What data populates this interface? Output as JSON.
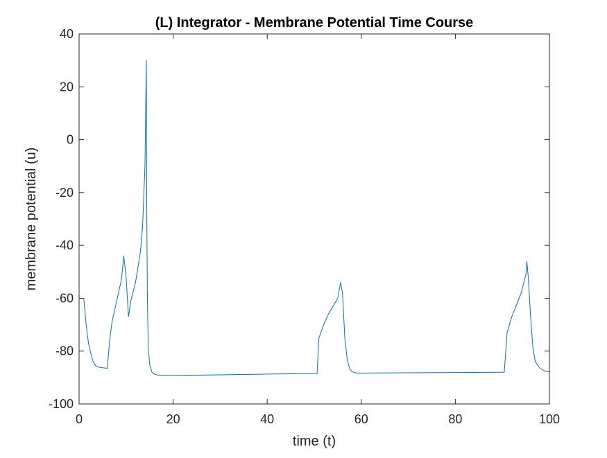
{
  "chart_data": {
    "type": "line",
    "title": "(L) Integrator - Membrane Potential Time Course",
    "xlabel": "time (t)",
    "ylabel": "membrane potential (u)",
    "xlim": [
      0,
      100
    ],
    "ylim": [
      -100,
      40
    ],
    "xticks": [
      0,
      20,
      40,
      60,
      80,
      100
    ],
    "yticks": [
      -100,
      -80,
      -60,
      -40,
      -20,
      0,
      20,
      40
    ],
    "grid": false,
    "legend": "none",
    "line_color": "#0072BD",
    "series": [
      {
        "x": [
          1,
          1.5,
          2,
          2.5,
          3,
          3.5,
          4,
          5,
          6,
          6,
          6.5,
          7,
          8,
          9,
          9.5,
          10,
          10.5,
          11,
          12,
          13,
          13.5,
          14,
          14.3,
          14.4,
          14.5,
          14.5,
          14.7,
          15,
          15.5,
          16,
          16.5,
          17,
          18,
          20,
          30,
          40,
          50,
          50.6,
          51,
          52,
          53,
          54,
          55,
          55.6,
          56,
          56.5,
          57,
          57.5,
          58,
          59,
          60,
          70,
          80,
          90,
          90.4,
          91,
          92,
          93,
          94,
          95,
          95.2,
          95.5,
          96,
          96.5,
          97,
          98,
          99,
          100
        ],
        "y": [
          -60,
          -70,
          -77,
          -81,
          -84,
          -85.5,
          -86,
          -86.3,
          -86.5,
          -86.5,
          -76,
          -69,
          -61,
          -53,
          -44,
          -52,
          -67,
          -61,
          -54,
          -43,
          -33,
          -10,
          30,
          -30,
          -54,
          -57,
          -78,
          -85,
          -88,
          -88.7,
          -89,
          -89.1,
          -89.2,
          -89.2,
          -89,
          -88.7,
          -88.5,
          -88.5,
          -75,
          -70,
          -66,
          -63,
          -60,
          -54,
          -58,
          -75,
          -83,
          -86.5,
          -87.8,
          -88.3,
          -88.3,
          -88.2,
          -88.1,
          -88,
          -88,
          -73,
          -67,
          -62.5,
          -58,
          -51,
          -46,
          -52,
          -67,
          -79,
          -84,
          -86.5,
          -87.5,
          -87.8
        ]
      }
    ]
  }
}
